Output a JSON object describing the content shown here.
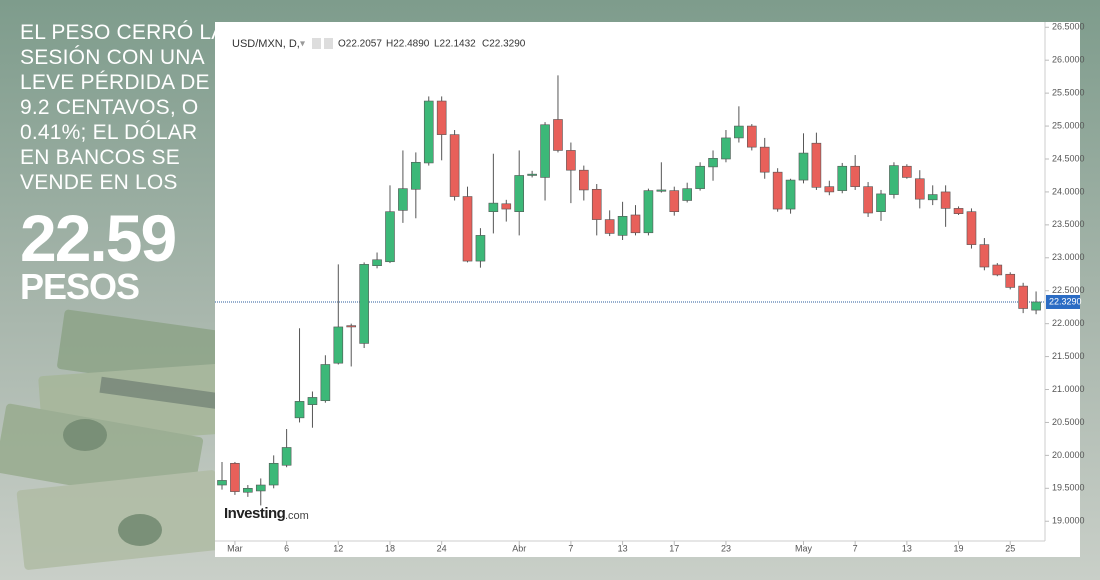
{
  "headline": {
    "lines": [
      "EL PESO CERRÓ LA",
      "SESIÓN CON UNA",
      "LEVE PÉRDIDA DE",
      "9.2 CENTAVOS, O",
      "0.41%; EL DÓLAR",
      "EN BANCOS SE",
      "VENDE EN LOS"
    ],
    "figure": "22.59",
    "unit": "PESOS"
  },
  "chart_data": {
    "type": "candlestick",
    "symbol": "USD/MXN, D,",
    "ohlc_text": [
      "O22.2057",
      "H22.4890",
      "L22.1432",
      "C22.3290"
    ],
    "watermark": "Investing",
    "watermark_suffix": ".com",
    "categories": [
      null,
      "Mar",
      null,
      null,
      null,
      "6",
      null,
      null,
      null,
      "12",
      null,
      null,
      null,
      "18",
      null,
      null,
      null,
      "24",
      null,
      null,
      null,
      null,
      null,
      "Abr",
      null,
      null,
      null,
      "7",
      null,
      null,
      null,
      "13",
      null,
      null,
      null,
      "17",
      null,
      null,
      null,
      "23",
      null,
      null,
      null,
      null,
      null,
      "May",
      null,
      null,
      null,
      "7",
      null,
      null,
      null,
      "13",
      null,
      null,
      null,
      "19",
      null,
      null,
      null,
      "25",
      null,
      null
    ],
    "open": [
      19.55,
      19.88,
      19.44,
      19.46,
      19.55,
      19.85,
      20.57,
      20.77,
      20.83,
      21.4,
      21.97,
      21.7,
      22.88,
      22.94,
      23.72,
      24.04,
      24.44,
      25.38,
      24.87,
      23.93,
      22.95,
      23.7,
      23.82,
      23.7,
      24.25,
      24.22,
      25.1,
      24.63,
      24.33,
      24.04,
      23.58,
      23.34,
      23.65,
      23.38,
      24.01,
      24.02,
      23.87,
      24.05,
      24.38,
      24.5,
      24.82,
      25.0,
      24.68,
      24.3,
      23.74,
      24.18,
      24.74,
      24.08,
      24.02,
      24.39,
      24.08,
      23.7,
      23.96,
      24.39,
      24.2,
      23.88,
      24.0,
      23.75,
      23.7,
      23.2,
      22.89,
      22.75,
      22.57,
      22.2057
    ],
    "high": [
      19.9,
      19.9,
      19.55,
      19.65,
      20.0,
      20.4,
      21.93,
      20.97,
      21.52,
      22.9,
      22.0,
      22.93,
      23.08,
      24.1,
      24.63,
      24.6,
      25.45,
      25.45,
      24.94,
      24.08,
      23.45,
      24.58,
      23.88,
      24.63,
      24.32,
      25.06,
      25.77,
      24.75,
      24.4,
      24.12,
      23.72,
      23.85,
      23.8,
      24.05,
      24.45,
      24.08,
      24.14,
      24.45,
      24.63,
      24.94,
      25.3,
      25.03,
      24.82,
      24.36,
      24.2,
      24.89,
      24.9,
      24.17,
      24.44,
      24.56,
      24.15,
      24.03,
      24.45,
      24.42,
      24.33,
      24.1,
      24.1,
      23.78,
      23.75,
      23.3,
      22.92,
      22.78,
      22.62,
      22.489
    ],
    "low": [
      19.48,
      19.4,
      19.37,
      19.24,
      19.5,
      19.82,
      20.5,
      20.42,
      20.8,
      21.38,
      21.35,
      21.63,
      22.84,
      22.92,
      23.53,
      23.6,
      24.4,
      24.48,
      23.87,
      22.93,
      22.85,
      23.37,
      23.55,
      23.34,
      24.22,
      23.87,
      24.6,
      23.83,
      23.87,
      23.34,
      23.33,
      23.27,
      23.34,
      23.34,
      23.99,
      23.64,
      23.84,
      24.02,
      24.17,
      24.45,
      24.75,
      24.63,
      24.2,
      23.7,
      23.67,
      24.13,
      24.03,
      23.95,
      23.98,
      24.03,
      23.62,
      23.56,
      23.9,
      24.2,
      23.75,
      23.8,
      23.47,
      23.65,
      23.14,
      22.81,
      22.72,
      22.52,
      22.16,
      22.1432
    ],
    "close": [
      19.62,
      19.45,
      19.5,
      19.55,
      19.88,
      20.12,
      20.82,
      20.88,
      21.38,
      21.95,
      21.95,
      22.9,
      22.97,
      23.7,
      24.05,
      24.45,
      25.38,
      24.87,
      23.93,
      22.95,
      23.34,
      23.83,
      23.74,
      24.25,
      24.27,
      25.02,
      24.63,
      24.33,
      24.03,
      23.58,
      23.37,
      23.63,
      23.38,
      24.02,
      24.03,
      23.7,
      24.05,
      24.39,
      24.51,
      24.82,
      25.0,
      24.68,
      24.3,
      23.74,
      24.18,
      24.59,
      24.07,
      24.0,
      24.39,
      24.08,
      23.68,
      23.97,
      24.4,
      24.22,
      23.89,
      23.96,
      23.75,
      23.67,
      23.2,
      22.86,
      22.74,
      22.55,
      22.23,
      22.329
    ],
    "up_color": "#3cb878",
    "down_color": "#e8605a",
    "ylim": [
      18.7,
      26.58
    ],
    "yticks": [
      {
        "value": 19,
        "label": "19.0000"
      },
      {
        "value": 19.5,
        "label": "19.5000"
      },
      {
        "value": 20,
        "label": "20.0000"
      },
      {
        "value": 20.5,
        "label": "20.5000"
      },
      {
        "value": 21,
        "label": "21.0000"
      },
      {
        "value": 21.5,
        "label": "21.5000"
      },
      {
        "value": 22,
        "label": "22.0000"
      },
      {
        "value": 22.5,
        "label": "22.5000"
      },
      {
        "value": 23,
        "label": "23.0000"
      },
      {
        "value": 23.5,
        "label": "23.5000"
      },
      {
        "value": 24,
        "label": "24.0000"
      },
      {
        "value": 24.5,
        "label": "24.5000"
      },
      {
        "value": 25,
        "label": "25.0000"
      },
      {
        "value": 25.5,
        "label": "25.5000"
      },
      {
        "value": 26,
        "label": "26.0000"
      },
      {
        "value": 26.5,
        "label": "26.5000"
      }
    ],
    "last_price": {
      "value": 22.329,
      "label": "22.3290"
    },
    "grid": false
  }
}
